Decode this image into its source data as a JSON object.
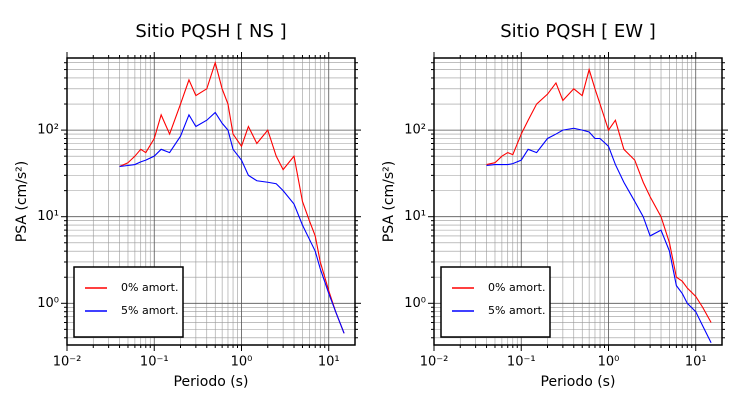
{
  "chart_data": [
    {
      "type": "line",
      "title": "Sitio PQSH [ NS ]",
      "x_label": "Periodo (s)",
      "y_label": "PSA (cm/s²)",
      "log_x": true,
      "log_y": true,
      "grid": true,
      "legend": "lower left",
      "xlim": [
        0.01,
        20
      ],
      "ylim": [
        0.33,
        680
      ],
      "xticks": [
        {
          "value": 0.01,
          "label": "10⁻²"
        },
        {
          "value": 0.1,
          "label": "10⁻¹"
        },
        {
          "value": 1,
          "label": "10⁰"
        },
        {
          "value": 10,
          "label": "10¹"
        }
      ],
      "yticks": [
        {
          "value": 1,
          "label": "10⁰"
        },
        {
          "value": 10,
          "label": "10¹"
        },
        {
          "value": 100,
          "label": "10²"
        }
      ],
      "x": [
        0.04,
        0.05,
        0.06,
        0.07,
        0.08,
        0.1,
        0.12,
        0.15,
        0.2,
        0.25,
        0.3,
        0.4,
        0.5,
        0.6,
        0.7,
        0.8,
        1,
        1.2,
        1.5,
        2,
        2.5,
        3,
        4,
        5,
        6,
        7,
        8,
        10,
        12,
        15
      ],
      "series": [
        {
          "name": "0% amort.",
          "color": "#ff0000",
          "values": [
            38,
            42,
            50,
            60,
            55,
            80,
            150,
            90,
            200,
            380,
            250,
            300,
            600,
            300,
            200,
            90,
            65,
            110,
            70,
            100,
            50,
            35,
            50,
            15,
            9,
            6,
            3,
            1.4,
            0.8,
            0.45
          ]
        },
        {
          "name": "5% amort.",
          "color": "#0000ff",
          "values": [
            38,
            39,
            40,
            43,
            45,
            50,
            60,
            55,
            85,
            150,
            110,
            130,
            160,
            120,
            100,
            60,
            45,
            30,
            26,
            25,
            24,
            20,
            14,
            8,
            5.5,
            4,
            2.5,
            1.3,
            0.8,
            0.45
          ]
        }
      ]
    },
    {
      "type": "line",
      "title": "Sitio PQSH [ EW ]",
      "x_label": "Periodo (s)",
      "y_label": "PSA (cm/s²)",
      "log_x": true,
      "log_y": true,
      "grid": true,
      "legend": "lower left",
      "xlim": [
        0.01,
        20
      ],
      "ylim": [
        0.33,
        680
      ],
      "xticks": [
        {
          "value": 0.01,
          "label": "10⁻²"
        },
        {
          "value": 0.1,
          "label": "10⁻¹"
        },
        {
          "value": 1,
          "label": "10⁰"
        },
        {
          "value": 10,
          "label": "10¹"
        }
      ],
      "yticks": [
        {
          "value": 1,
          "label": "10⁰"
        },
        {
          "value": 10,
          "label": "10¹"
        },
        {
          "value": 100,
          "label": "10²"
        }
      ],
      "x": [
        0.04,
        0.05,
        0.06,
        0.07,
        0.08,
        0.1,
        0.12,
        0.15,
        0.2,
        0.25,
        0.3,
        0.4,
        0.5,
        0.6,
        0.7,
        0.8,
        1,
        1.2,
        1.5,
        2,
        2.5,
        3,
        4,
        5,
        6,
        7,
        8,
        10,
        12,
        15
      ],
      "series": [
        {
          "name": "0% amort.",
          "color": "#ff0000",
          "values": [
            40,
            42,
            50,
            55,
            52,
            90,
            130,
            200,
            260,
            350,
            220,
            300,
            250,
            500,
            300,
            200,
            100,
            130,
            60,
            45,
            25,
            17,
            10,
            5,
            2,
            1.8,
            1.5,
            1.2,
            0.9,
            0.6
          ]
        },
        {
          "name": "5% amort.",
          "color": "#0000ff",
          "values": [
            39,
            40,
            40,
            40,
            41,
            45,
            60,
            55,
            80,
            90,
            100,
            105,
            100,
            95,
            80,
            80,
            65,
            40,
            25,
            15,
            10,
            6,
            7,
            4,
            1.6,
            1.3,
            1.0,
            0.8,
            0.55,
            0.35
          ]
        }
      ]
    }
  ]
}
